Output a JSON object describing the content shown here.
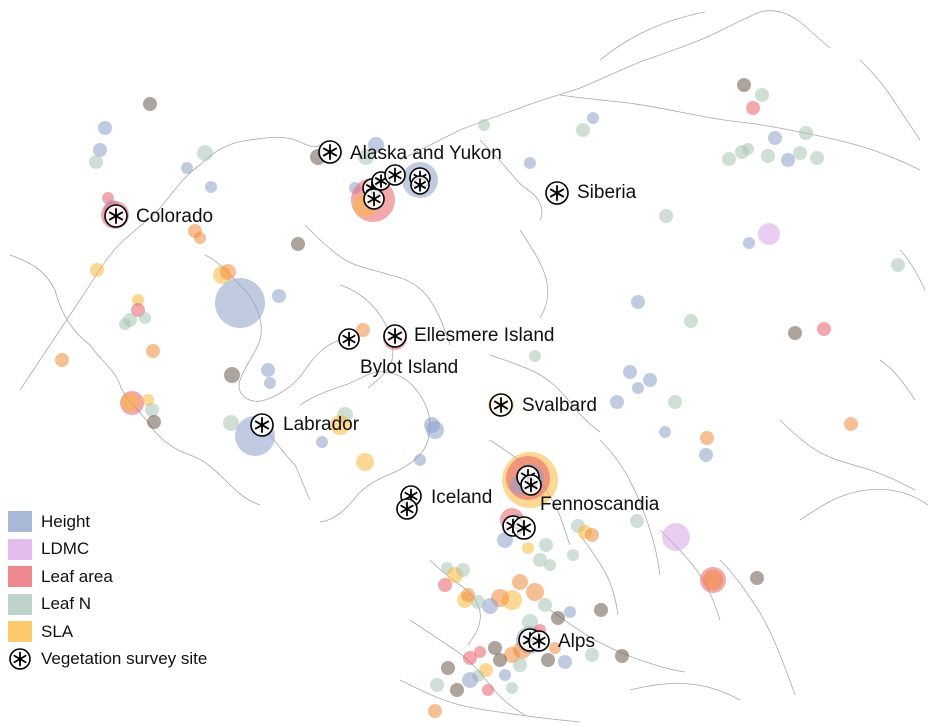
{
  "legend": {
    "items": [
      {
        "key": "height",
        "label": "Height",
        "color": "#8da0cb"
      },
      {
        "key": "ldmc",
        "label": "LDMC",
        "color": "#d9a6e6"
      },
      {
        "key": "leaf_area",
        "label": "Leaf area",
        "color": "#e8606a"
      },
      {
        "key": "leaf_n",
        "label": "Leaf N",
        "color": "#a8c4b4"
      },
      {
        "key": "sla",
        "label": "SLA",
        "color": "#fbb73c"
      }
    ],
    "survey_label": "Vegetation survey site"
  },
  "sites": {
    "alaska": "Alaska and Yukon",
    "siberia": "Siberia",
    "colorado": "Colorado",
    "ellesmere": "Ellesmere Island",
    "bylot": "Bylot Island",
    "svalbard": "Svalbard",
    "labrador": "Labrador",
    "iceland": "Iceland",
    "fennoscandia": "Fennoscandia",
    "alps": "Alps"
  },
  "colors": {
    "coastline": "#a9a9a9",
    "dark_point": "#6b5a4e"
  }
}
